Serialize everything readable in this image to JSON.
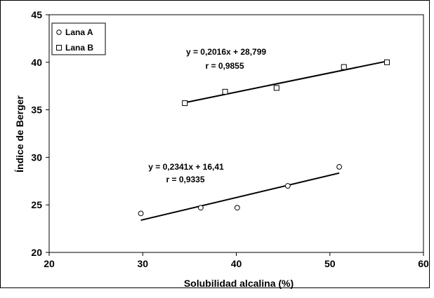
{
  "chart_data": {
    "type": "scatter",
    "xlabel": "Solubilidad alcalina (%)",
    "ylabel": "Índice de Berger",
    "xlim": [
      20,
      60
    ],
    "ylim": [
      20,
      45
    ],
    "xticks": [
      "20",
      "30",
      "40",
      "50",
      "60"
    ],
    "yticks": [
      "20",
      "25",
      "30",
      "35",
      "40",
      "45"
    ],
    "grid": false,
    "legend": "top-left",
    "series": [
      {
        "name": "Lana A",
        "marker": "circle",
        "x": [
          29.8,
          36.2,
          40.1,
          45.5,
          51.0
        ],
        "y": [
          24.1,
          24.7,
          24.7,
          27.0,
          29.0
        ],
        "trendline": {
          "slope": 0.2341,
          "intercept": 16.41,
          "x_range": [
            29.8,
            51.0
          ]
        },
        "equation": "y = 0,2341x + 16,41",
        "r": "r = 0,9335"
      },
      {
        "name": "Lana B",
        "marker": "square",
        "x": [
          34.5,
          38.8,
          44.3,
          51.5,
          56.1
        ],
        "y": [
          35.7,
          36.9,
          37.3,
          39.5,
          40.0
        ],
        "trendline": {
          "slope": 0.2016,
          "intercept": 28.799,
          "x_range": [
            34.5,
            56.1
          ]
        },
        "equation": "y = 0,2016x + 28,799",
        "r": "r = 0,9855"
      }
    ]
  },
  "colors": {
    "axis": "#000000",
    "marker_fill": "#ffffff",
    "line": "#000000"
  }
}
